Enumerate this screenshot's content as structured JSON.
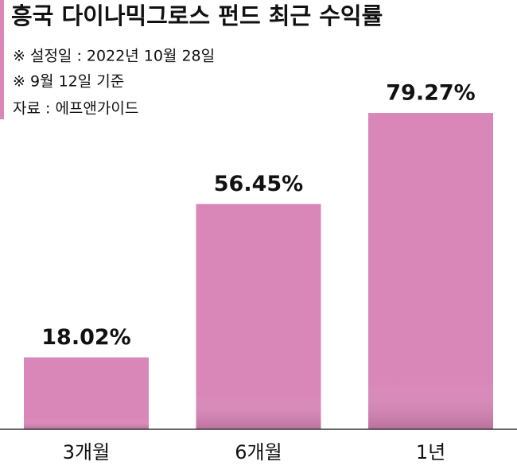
{
  "chart_data": {
    "type": "bar",
    "title": "흥국 다이나믹그로스 펀드 최근 수익률",
    "notes": [
      "※ 설정일 : 2022년 10월 28일",
      "※ 9월 12일 기준",
      "자료 : 에프앤가이드"
    ],
    "categories": [
      "3개월",
      "6개월",
      "1년"
    ],
    "values": [
      18.02,
      56.45,
      79.27
    ],
    "value_labels": [
      "18.02%",
      "56.45%",
      "79.27%"
    ],
    "color": "#d987b8"
  }
}
